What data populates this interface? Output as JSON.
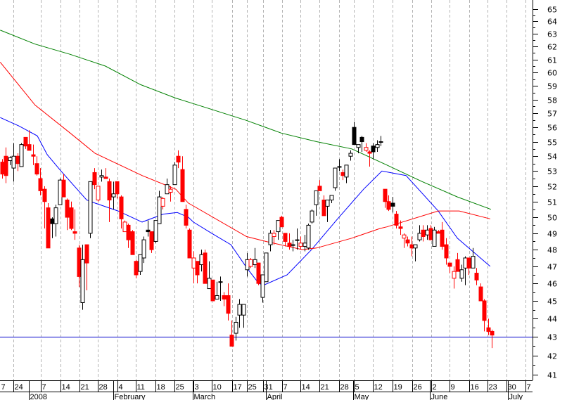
{
  "chart_data": {
    "type": "candlestick",
    "title": "",
    "xlabel": "",
    "ylabel": "",
    "y_scale": "log",
    "ylim": [
      41,
      65
    ],
    "y_ticks": [
      41,
      42,
      43,
      44,
      45,
      46,
      47,
      48,
      49,
      50,
      51,
      52,
      53,
      54,
      55,
      56,
      57,
      58,
      59,
      60,
      61,
      62,
      63,
      64,
      65
    ],
    "y_axis_side": "right",
    "grid": "vertical dashed weekly",
    "colors": {
      "down": "#ff0000",
      "up": "#000000",
      "ma_short": "#0000ff",
      "ma_mid": "#ff0000",
      "ma_long": "#008000",
      "hline": "#0000cc"
    },
    "candle_fields": [
      "style",
      "open",
      "high",
      "low",
      "close"
    ],
    "candle_style_legend": {
      "r": "red filled",
      "rh": "red hollow",
      "b": "black hollow",
      "bf": "black filled"
    },
    "candles": [
      [
        "r",
        53.6,
        53.8,
        52.5,
        52.8
      ],
      [
        "r",
        54.0,
        54.6,
        52.2,
        52.7
      ],
      [
        "b",
        53.7,
        54.0,
        53.4,
        53.9
      ],
      [
        "b",
        53.2,
        54.9,
        52.3,
        54.0
      ],
      [
        "r",
        54.0,
        54.2,
        53.0,
        53.5
      ],
      [
        "b",
        53.3,
        54.9,
        53.3,
        54.8
      ],
      [
        "r",
        55.3,
        55.3,
        54.5,
        54.7
      ],
      [
        "r",
        54.8,
        55.8,
        54.4,
        54.4
      ],
      [
        "r",
        54.1,
        54.8,
        53.4,
        54.0
      ],
      [
        "r",
        53.5,
        54.0,
        52.7,
        52.8
      ],
      [
        "r",
        52.5,
        53.2,
        51.4,
        51.7
      ],
      [
        "r",
        51.8,
        52.0,
        49.3,
        51.0
      ],
      [
        "r",
        50.6,
        50.9,
        48.1,
        48.1
      ],
      [
        "bf",
        49.9,
        50.0,
        48.7,
        49.6
      ],
      [
        "b",
        49.6,
        50.8,
        48.8,
        50.6
      ],
      [
        "b",
        50.8,
        52.5,
        50.8,
        52.4
      ],
      [
        "r",
        52.4,
        52.8,
        51.3,
        51.3
      ],
      [
        "r",
        51.1,
        51.2,
        49.2,
        50.0
      ],
      [
        "r",
        50.6,
        51.0,
        49.2,
        49.3
      ],
      [
        "r",
        49.1,
        50.5,
        48.6,
        49.0
      ],
      [
        "r",
        48.1,
        48.3,
        45.8,
        46.4
      ],
      [
        "b",
        44.9,
        48.3,
        44.5,
        47.4
      ],
      [
        "r",
        48.3,
        48.3,
        45.6,
        47.2
      ],
      [
        "b",
        49.0,
        52.3,
        48.7,
        52.3
      ],
      [
        "r",
        52.9,
        53.2,
        51.8,
        52.1
      ],
      [
        "rh",
        51.1,
        52.0,
        51.0,
        52.0
      ],
      [
        "b",
        52.6,
        53.1,
        52.3,
        52.7
      ],
      [
        "r",
        52.6,
        53.2,
        52.5,
        52.5
      ],
      [
        "r",
        52.3,
        52.5,
        49.7,
        51.1
      ],
      [
        "b",
        51.3,
        52.3,
        50.5,
        51.5
      ],
      [
        "r",
        52.3,
        52.3,
        51.2,
        51.5
      ],
      [
        "r",
        51.3,
        51.4,
        49.3,
        49.9
      ],
      [
        "rh",
        49.1,
        49.8,
        49.1,
        49.7
      ],
      [
        "r",
        49.5,
        49.6,
        48.1,
        48.6
      ],
      [
        "r",
        49.1,
        49.2,
        47.7,
        47.7
      ],
      [
        "r",
        47.3,
        47.4,
        46.3,
        46.5
      ],
      [
        "b",
        46.7,
        47.7,
        46.5,
        47.7
      ],
      [
        "b",
        47.5,
        48.8,
        47.2,
        48.6
      ],
      [
        "bf",
        49.2,
        49.8,
        48.8,
        49.1
      ],
      [
        "r",
        49.1,
        49.1,
        47.8,
        48.0
      ],
      [
        "b",
        48.5,
        49.8,
        48.4,
        49.8
      ],
      [
        "b",
        49.6,
        51.7,
        49.6,
        51.3
      ],
      [
        "rh",
        50.7,
        51.3,
        50.5,
        51.2
      ],
      [
        "b",
        51.5,
        52.5,
        51.5,
        52.1
      ],
      [
        "rh",
        51.6,
        52.0,
        51.0,
        51.8
      ],
      [
        "b",
        52.1,
        53.6,
        52.1,
        53.4
      ],
      [
        "r",
        54.0,
        54.4,
        53.2,
        53.6
      ],
      [
        "r",
        53.1,
        54.0,
        51.0,
        51.0
      ],
      [
        "r",
        50.5,
        50.8,
        49.3,
        49.5
      ],
      [
        "r",
        49.2,
        49.3,
        47.5,
        47.5
      ],
      [
        "rh",
        46.9,
        47.9,
        46.0,
        47.5
      ],
      [
        "r",
        47.3,
        47.3,
        46.0,
        46.5
      ],
      [
        "b",
        47.1,
        48.0,
        46.7,
        47.7
      ],
      [
        "r",
        47.8,
        48.0,
        46.0,
        46.0
      ],
      [
        "b",
        45.7,
        47.3,
        45.7,
        46.3
      ],
      [
        "r",
        46.2,
        46.2,
        45.0,
        45.0
      ],
      [
        "b",
        45.1,
        46.1,
        45.1,
        45.3
      ],
      [
        "b",
        46.1,
        46.4,
        45.0,
        46.1
      ],
      [
        "r",
        45.3,
        45.5,
        44.7,
        45.1
      ],
      [
        "r",
        45.3,
        46.0,
        43.9,
        44.3
      ],
      [
        "r",
        43.1,
        43.9,
        42.5,
        42.5
      ],
      [
        "b",
        43.2,
        44.1,
        42.8,
        43.8
      ],
      [
        "b",
        44.2,
        45.1,
        43.5,
        44.8
      ],
      [
        "b",
        44.2,
        44.8,
        43.5,
        44.8
      ],
      [
        "b",
        46.8,
        47.8,
        46.4,
        47.4
      ],
      [
        "rh",
        47.0,
        47.5,
        46.9,
        47.4
      ],
      [
        "b",
        47.1,
        48.1,
        46.9,
        47.4
      ],
      [
        "r",
        47.2,
        47.2,
        45.9,
        46.0
      ],
      [
        "b",
        45.2,
        46.5,
        44.9,
        46.5
      ],
      [
        "b",
        46.1,
        47.8,
        46.1,
        47.8
      ],
      [
        "b",
        48.3,
        49.2,
        47.9,
        49.0
      ],
      [
        "rh",
        48.8,
        49.2,
        48.3,
        49.0
      ],
      [
        "b",
        49.1,
        49.8,
        48.6,
        49.8
      ],
      [
        "r",
        50.0,
        50.1,
        49.4,
        49.4
      ],
      [
        "r",
        49.0,
        49.0,
        48.2,
        48.5
      ],
      [
        "r",
        48.4,
        49.0,
        48.0,
        48.2
      ],
      [
        "b",
        48.3,
        48.6,
        47.9,
        48.3
      ],
      [
        "b",
        48.6,
        49.3,
        48.0,
        48.6
      ],
      [
        "rh",
        48.2,
        48.8,
        48.0,
        48.4
      ],
      [
        "b",
        48.2,
        48.9,
        47.9,
        48.4
      ],
      [
        "b",
        48.1,
        49.6,
        48.0,
        49.5
      ],
      [
        "b",
        49.7,
        50.5,
        49.6,
        50.4
      ],
      [
        "b",
        50.8,
        51.7,
        50.1,
        51.7
      ],
      [
        "r",
        52.0,
        52.4,
        51.7,
        51.7
      ],
      [
        "r",
        51.1,
        51.4,
        50.1,
        50.1
      ],
      [
        "b",
        50.7,
        51.1,
        49.7,
        51.1
      ],
      [
        "b",
        51.1,
        51.4,
        50.9,
        51.4
      ],
      [
        "b",
        51.9,
        53.2,
        51.7,
        53.2
      ],
      [
        "b",
        53.3,
        53.8,
        53.0,
        53.3
      ],
      [
        "r",
        52.9,
        53.1,
        52.4,
        52.7
      ],
      [
        "b",
        52.6,
        53.4,
        52.2,
        53.4
      ],
      [
        "b",
        54.0,
        54.4,
        53.7,
        54.2
      ],
      [
        "bf",
        56.0,
        56.4,
        54.8,
        54.8
      ],
      [
        "b",
        54.6,
        54.8,
        54.2,
        54.8
      ],
      [
        "bf",
        55.3,
        55.4,
        54.3,
        55.0
      ],
      [
        "rh",
        54.4,
        54.9,
        54.3,
        54.6
      ],
      [
        "r",
        54.3,
        54.4,
        53.3,
        54.2
      ],
      [
        "bf",
        54.7,
        54.9,
        53.8,
        54.3
      ],
      [
        "b",
        54.6,
        55.1,
        54.3,
        54.8
      ],
      [
        "b",
        55.0,
        55.4,
        54.7,
        55.0
      ],
      [
        "r",
        51.8,
        51.8,
        50.6,
        51.0
      ],
      [
        "r",
        51.0,
        51.4,
        50.4,
        50.5
      ],
      [
        "bf",
        50.9,
        51.3,
        50.3,
        50.7
      ],
      [
        "r",
        50.2,
        50.4,
        49.3,
        49.5
      ],
      [
        "r",
        49.4,
        49.8,
        48.9,
        49.3
      ],
      [
        "rh",
        48.7,
        49.0,
        48.1,
        48.9
      ],
      [
        "r",
        48.6,
        48.8,
        48.2,
        48.4
      ],
      [
        "r",
        48.3,
        48.8,
        47.6,
        48.1
      ],
      [
        "b",
        48.1,
        48.3,
        47.3,
        48.3
      ],
      [
        "b",
        48.6,
        49.5,
        48.5,
        49.0
      ],
      [
        "r",
        49.2,
        49.5,
        48.5,
        48.8
      ],
      [
        "b",
        48.9,
        49.5,
        48.6,
        49.2
      ],
      [
        "r",
        49.3,
        49.5,
        48.6,
        48.6
      ],
      [
        "b",
        48.2,
        49.4,
        48.2,
        49.2
      ],
      [
        "r",
        49.1,
        49.2,
        49.0,
        49.0
      ],
      [
        "r",
        49.2,
        49.7,
        48.0,
        48.2
      ],
      [
        "r",
        48.3,
        48.7,
        47.1,
        47.5
      ],
      [
        "r",
        47.2,
        47.2,
        46.6,
        47.0
      ],
      [
        "rh",
        46.3,
        47.0,
        45.7,
        46.7
      ],
      [
        "r",
        47.4,
        47.8,
        46.7,
        46.7
      ],
      [
        "b",
        46.3,
        47.1,
        46.1,
        46.8
      ],
      [
        "b",
        46.9,
        47.6,
        45.9,
        47.5
      ],
      [
        "r",
        47.5,
        47.5,
        46.5,
        46.9
      ],
      [
        "b",
        46.9,
        48.1,
        46.9,
        47.6
      ],
      [
        "r",
        46.6,
        46.9,
        45.9,
        46.2
      ],
      [
        "r",
        45.8,
        46.0,
        45.0,
        45.0
      ],
      [
        "r",
        45.0,
        45.1,
        43.3,
        43.9
      ],
      [
        "r",
        43.5,
        44.0,
        43.1,
        43.3
      ],
      [
        "r",
        43.3,
        43.4,
        42.4,
        43.1
      ]
    ],
    "series": [
      {
        "name": "MA short (blue)",
        "color": "#0000ff",
        "points": [
          [
            -0.5,
            56.7
          ],
          [
            4.4,
            56.1
          ],
          [
            9.2,
            55.4
          ],
          [
            11.8,
            54.1
          ],
          [
            15.4,
            53.0
          ],
          [
            22.1,
            51.1
          ],
          [
            24.3,
            50.9
          ],
          [
            30.3,
            50.4
          ],
          [
            36.6,
            49.7
          ],
          [
            42.1,
            50.2
          ],
          [
            45.8,
            50.3
          ],
          [
            48.7,
            50.0
          ],
          [
            50.0,
            49.7
          ],
          [
            54.8,
            49.0
          ],
          [
            59.8,
            48.3
          ],
          [
            64.0,
            46.9
          ],
          [
            67.1,
            46.0
          ],
          [
            68.4,
            45.9
          ],
          [
            74.5,
            46.5
          ],
          [
            80.9,
            48.0
          ],
          [
            87.7,
            49.9
          ],
          [
            94.5,
            51.8
          ],
          [
            99.3,
            53.0
          ],
          [
            105.6,
            52.7
          ],
          [
            114.0,
            50.4
          ],
          [
            119.0,
            48.7
          ],
          [
            127.6,
            47.0
          ]
        ]
      },
      {
        "name": "MA mid (red)",
        "color": "#ff0000",
        "points": [
          [
            -0.5,
            60.8
          ],
          [
            8.6,
            57.6
          ],
          [
            17.8,
            55.6
          ],
          [
            24.3,
            54.2
          ],
          [
            36.6,
            52.7
          ],
          [
            45.4,
            51.8
          ],
          [
            48.7,
            50.9
          ],
          [
            63.9,
            48.8
          ],
          [
            69.0,
            48.5
          ],
          [
            78.5,
            48.0
          ],
          [
            82.2,
            48.1
          ],
          [
            91.4,
            48.7
          ],
          [
            98.8,
            49.3
          ],
          [
            100.6,
            49.4
          ],
          [
            114.0,
            50.4
          ],
          [
            119.5,
            50.4
          ],
          [
            127.6,
            49.9
          ]
        ]
      },
      {
        "name": "MA long (green)",
        "color": "#008000",
        "points": [
          [
            -0.5,
            63.3
          ],
          [
            8.6,
            62.2
          ],
          [
            17.8,
            61.4
          ],
          [
            27.0,
            60.5
          ],
          [
            36.2,
            59.1
          ],
          [
            45.4,
            58.1
          ],
          [
            54.6,
            57.3
          ],
          [
            63.8,
            56.5
          ],
          [
            73.0,
            55.6
          ],
          [
            82.2,
            55.0
          ],
          [
            91.4,
            54.5
          ],
          [
            100.6,
            53.4
          ],
          [
            109.8,
            52.3
          ],
          [
            119.0,
            51.3
          ],
          [
            127.8,
            50.5
          ]
        ]
      }
    ],
    "hline": 43,
    "x_unit": "trading day index",
    "x_ticks": [
      {
        "label": "7",
        "day": -0.55
      },
      {
        "label": "24",
        "day": 2.9
      },
      {
        "label": "7",
        "day": 10.1
      },
      {
        "label": "14",
        "day": 15.3
      },
      {
        "label": "21",
        "day": 20.2
      },
      {
        "label": "28",
        "day": 25.0
      },
      {
        "label": "4",
        "day": 30.2
      },
      {
        "label": "11",
        "day": 34.9
      },
      {
        "label": "18",
        "day": 40.1
      },
      {
        "label": "25",
        "day": 45.1
      },
      {
        "label": "3",
        "day": 50.0
      },
      {
        "label": "10",
        "day": 54.8
      },
      {
        "label": "17",
        "day": 60.1
      },
      {
        "label": "25",
        "day": 64.0
      },
      {
        "label": "31",
        "day": 68.2
      },
      {
        "label": "7",
        "day": 73.2
      },
      {
        "label": "14",
        "day": 78.0
      },
      {
        "label": "21",
        "day": 82.9
      },
      {
        "label": "28",
        "day": 88.1
      },
      {
        "label": "5",
        "day": 92.0
      },
      {
        "label": "12",
        "day": 96.9
      },
      {
        "label": "19",
        "day": 102.1
      },
      {
        "label": "26",
        "day": 107.2
      },
      {
        "label": "2",
        "day": 112.2
      },
      {
        "label": "9",
        "day": 117.0
      },
      {
        "label": "16",
        "day": 122.1
      },
      {
        "label": "23",
        "day": 126.9
      },
      {
        "label": "30",
        "day": 131.9
      },
      {
        "label": "7",
        "day": 136.8
      }
    ],
    "month_ticks": [
      {
        "label": "2008",
        "day": 6.9
      },
      {
        "label": "February",
        "day": 29.0
      },
      {
        "label": "March",
        "day": 49.8
      },
      {
        "label": "April",
        "day": 68.9
      },
      {
        "label": "May",
        "day": 91.8
      },
      {
        "label": "June",
        "day": 111.9
      },
      {
        "label": "July",
        "day": 132.3
      }
    ]
  }
}
